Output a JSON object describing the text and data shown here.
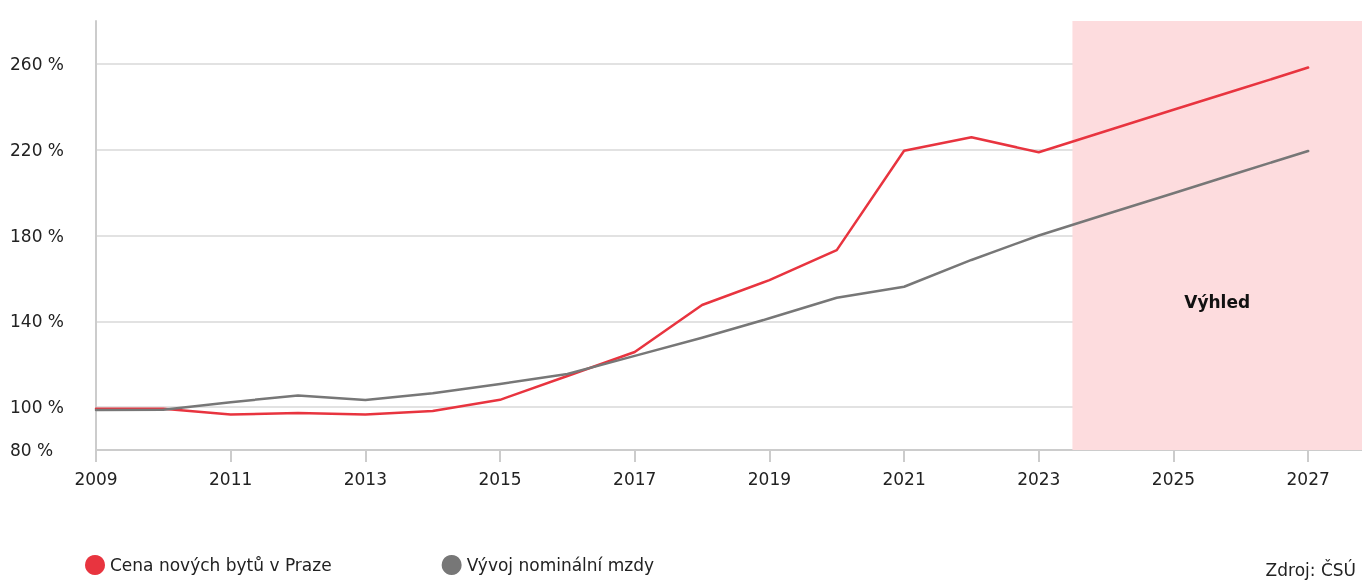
{
  "chart_data": {
    "type": "line",
    "x": [
      2009,
      2010,
      2011,
      2012,
      2013,
      2014,
      2015,
      2016,
      2017,
      2018,
      2019,
      2020,
      2021,
      2022,
      2023,
      2024,
      2025,
      2026,
      2027
    ],
    "series": [
      {
        "name": "Cena nových bytů v Praze",
        "color": "#e8343f",
        "values": [
          99.2,
          99.2,
          96.6,
          97.2,
          96.6,
          98.2,
          103.4,
          114.5,
          125.7,
          147.6,
          159.2,
          173.2,
          219.5,
          225.8,
          218.8,
          228.7,
          238.6,
          248.4,
          258.3
        ]
      },
      {
        "name": "Vývoj nominální mzdy",
        "color": "#777777",
        "values": [
          98.6,
          98.8,
          102.3,
          105.4,
          103.3,
          106.5,
          110.8,
          115.4,
          123.9,
          132.3,
          141.4,
          151,
          156.1,
          168.6,
          180,
          189.9,
          199.7,
          209.6,
          219.4
        ]
      }
    ],
    "xlim": [
      2009,
      2027.8
    ],
    "xticks": [
      2009,
      2011,
      2013,
      2015,
      2017,
      2019,
      2021,
      2023,
      2025,
      2027
    ],
    "ylim": [
      80,
      280
    ],
    "yticks": [
      {
        "value": 80,
        "label": "80 %"
      },
      {
        "value": 100,
        "label": "100 %"
      },
      {
        "value": 140,
        "label": "140 %"
      },
      {
        "value": 180,
        "label": "180 %"
      },
      {
        "value": 220,
        "label": "220 %"
      },
      {
        "value": 260,
        "label": "260 %"
      }
    ],
    "bands": [
      {
        "axis": "x",
        "from": 2023.5,
        "to": 2027.8,
        "label": "Výhled",
        "color": "#fddcde"
      }
    ],
    "grid": "y",
    "legend": "bottom left",
    "marker": "none",
    "line_style": "solid",
    "annotations": [
      "Zdroj: ČSÚ"
    ]
  }
}
